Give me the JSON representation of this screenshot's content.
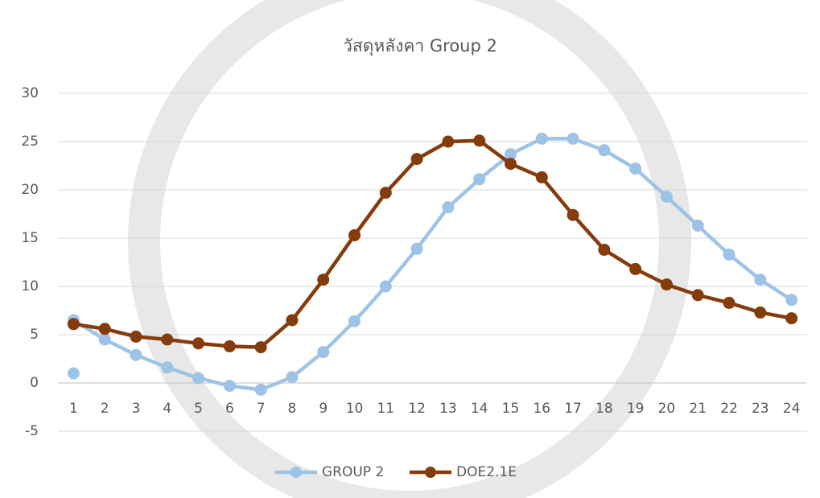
{
  "chart_data": {
    "type": "line",
    "title": "วัสดุหลังคา Group 2",
    "categories": [
      "1",
      "2",
      "3",
      "4",
      "5",
      "6",
      "7",
      "8",
      "9",
      "10",
      "11",
      "12",
      "13",
      "14",
      "15",
      "16",
      "17",
      "18",
      "19",
      "20",
      "21",
      "22",
      "23",
      "24"
    ],
    "series": [
      {
        "name": "GROUP 2",
        "color": "#9dc3e6",
        "values": [
          6.5,
          4.5,
          2.9,
          1.6,
          0.5,
          -0.3,
          -0.7,
          0.6,
          3.2,
          6.4,
          10.0,
          13.9,
          18.2,
          21.1,
          23.7,
          25.3,
          25.3,
          24.1,
          22.2,
          19.3,
          16.3,
          13.3,
          10.7,
          8.6
        ]
      },
      {
        "name": "DOE2.1E",
        "color": "#843c0c",
        "values": [
          6.1,
          5.6,
          4.8,
          4.5,
          4.1,
          3.8,
          3.7,
          6.5,
          10.7,
          15.3,
          19.7,
          23.2,
          25.0,
          25.1,
          22.7,
          21.3,
          17.4,
          13.8,
          11.8,
          10.2,
          9.1,
          8.3,
          7.3,
          6.7
        ]
      },
      {
        "color": "#9dc3e6",
        "values": [
          1,
          null,
          null,
          null,
          null,
          null,
          null,
          null,
          null,
          null,
          null,
          null,
          null,
          null,
          null,
          null,
          null,
          null,
          null,
          null,
          null,
          null,
          null,
          null
        ]
      }
    ],
    "ylim": [
      -5,
      30
    ],
    "yticks": [
      -5,
      0,
      5,
      10,
      15,
      20,
      25,
      30
    ],
    "grid": true,
    "legend": "bottom"
  }
}
